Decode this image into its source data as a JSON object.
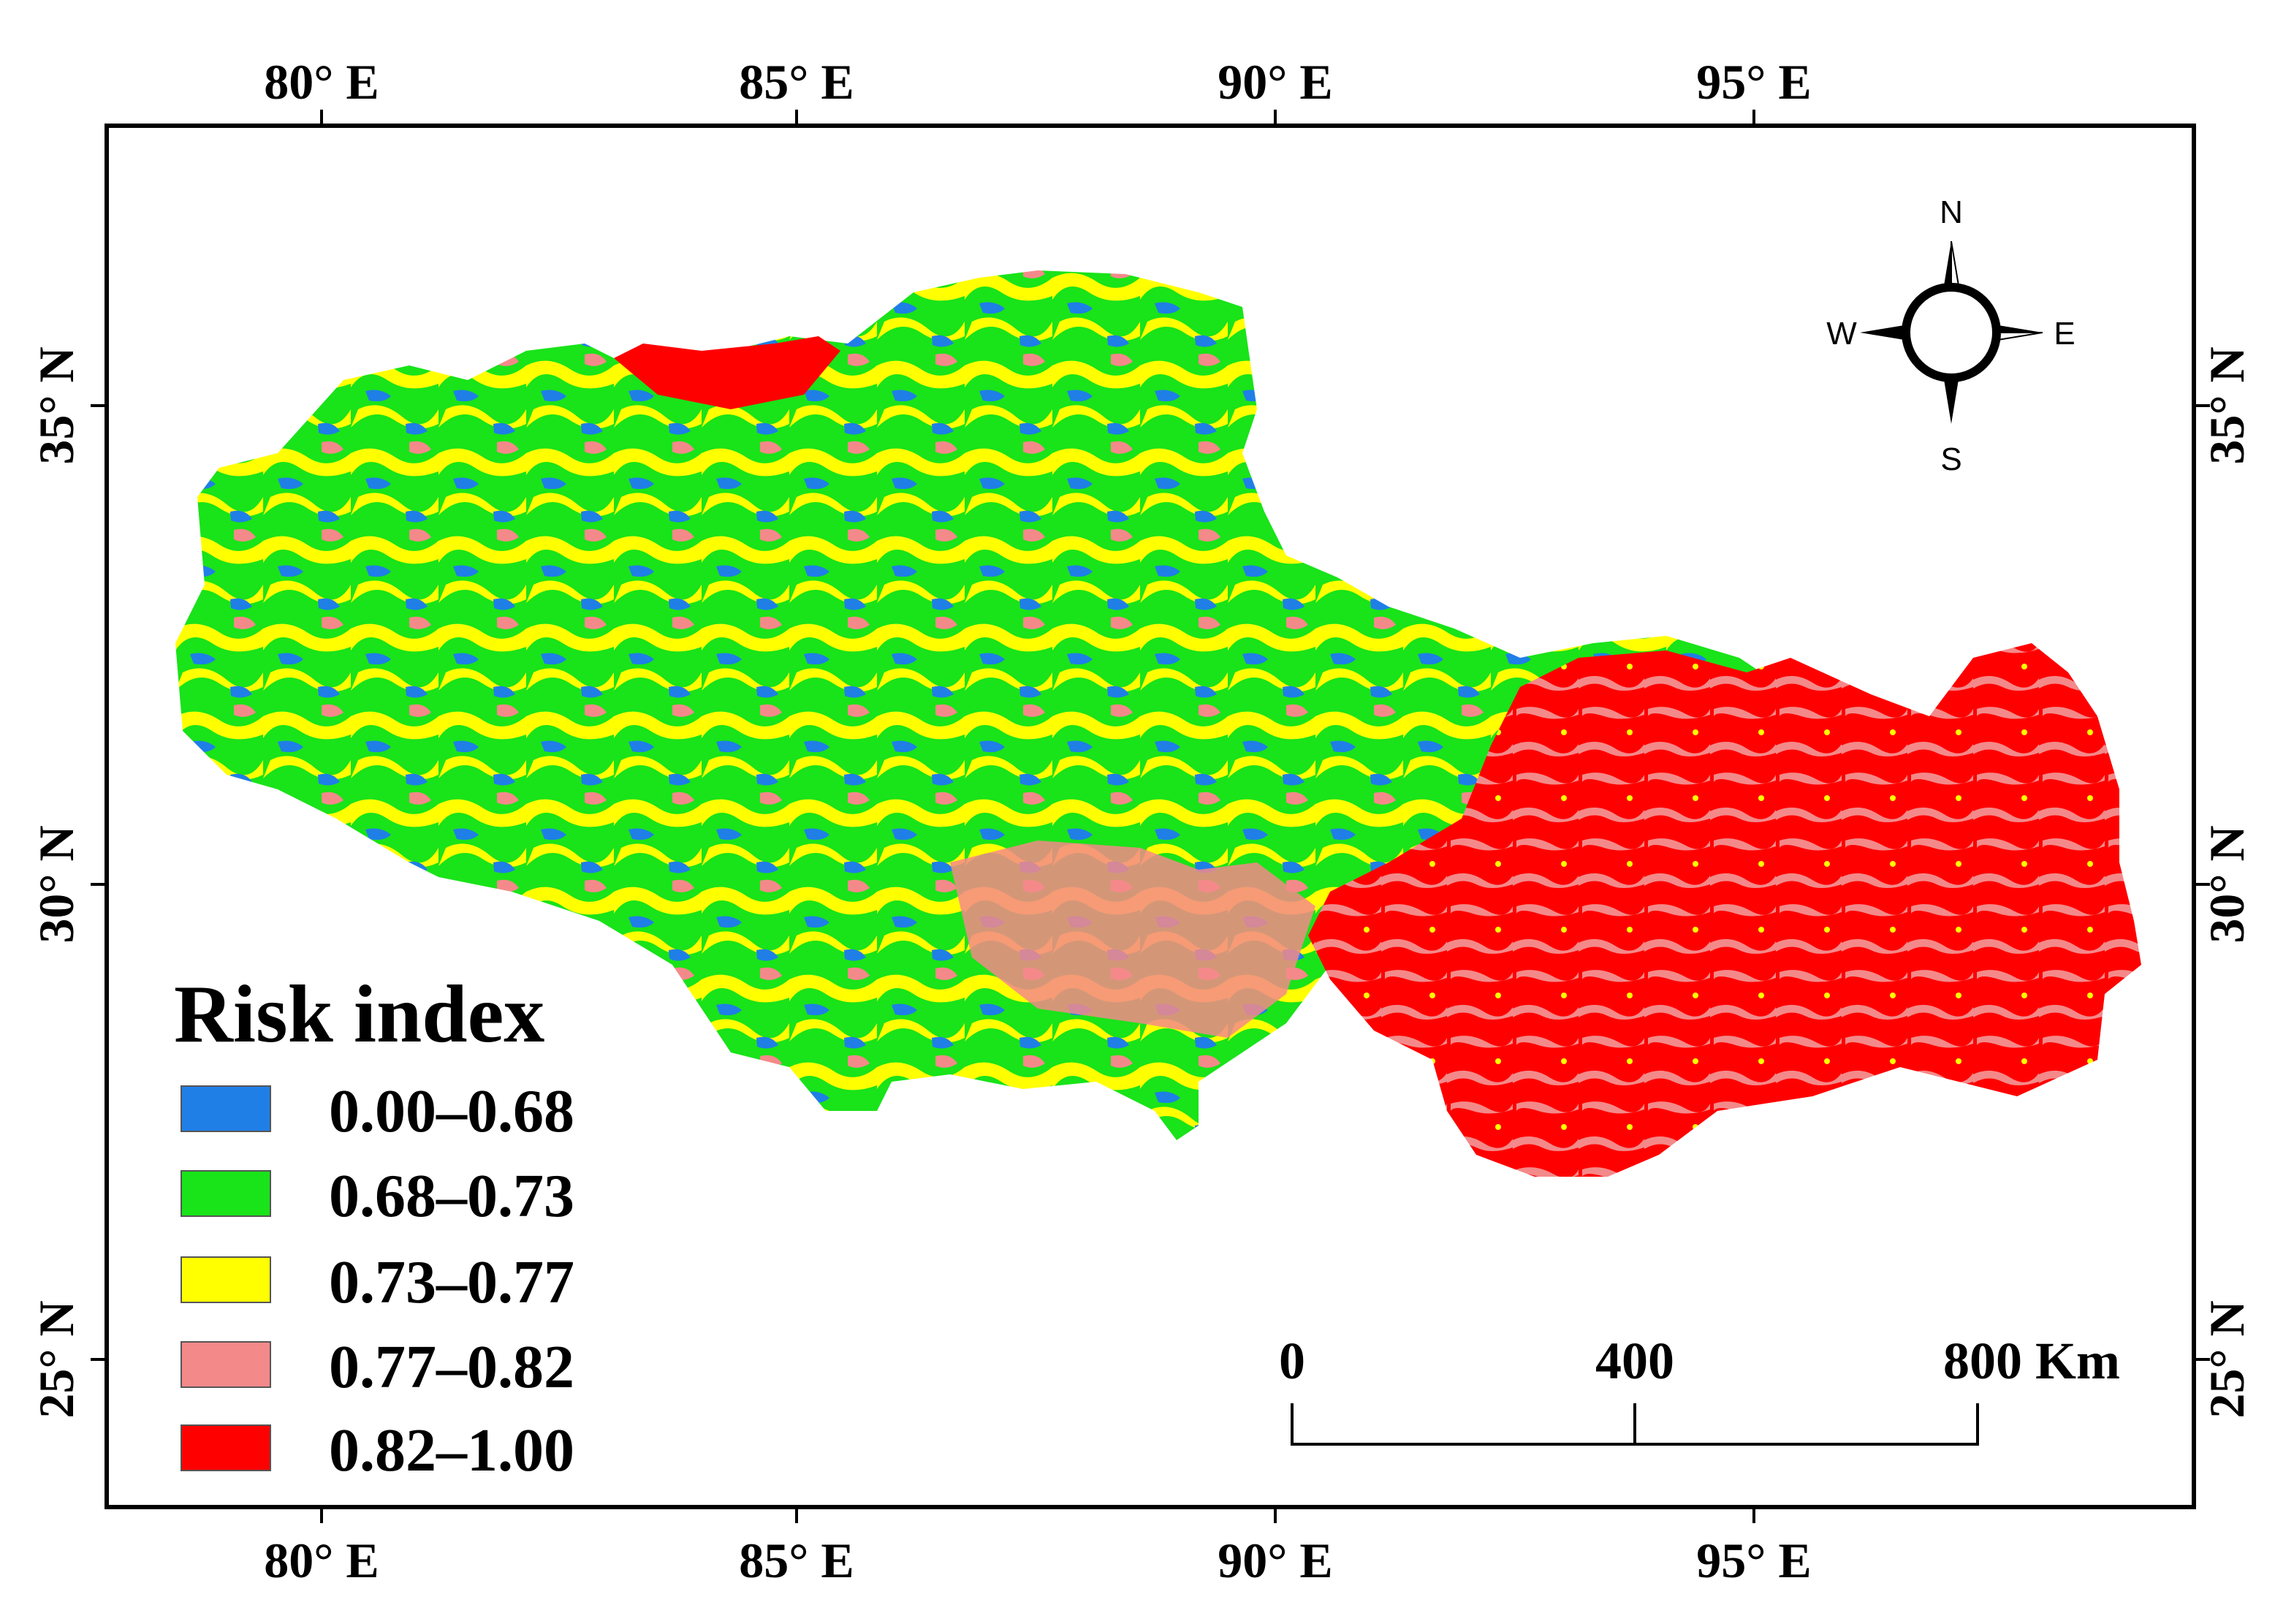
{
  "axes": {
    "lon_top": [
      "80° E",
      "85° E",
      "90° E",
      "95° E"
    ],
    "lon_bottom": [
      "80° E",
      "85° E",
      "90° E",
      "95° E"
    ],
    "lat_left": [
      "35° N",
      "30° N",
      "25° N"
    ],
    "lat_right": [
      "35° N",
      "30° N",
      "25° N"
    ]
  },
  "legend": {
    "title": "Risk index",
    "items": [
      {
        "label": "0.00–0.68",
        "color": "#1f7fe6"
      },
      {
        "label": "0.68–0.73",
        "color": "#19e319"
      },
      {
        "label": "0.73–0.77",
        "color": "#ffff00"
      },
      {
        "label": "0.77–0.82",
        "color": "#f4898a"
      },
      {
        "label": "0.82–1.00",
        "color": "#ff0000"
      }
    ]
  },
  "scale_bar": {
    "labels": [
      "0",
      "400",
      "800 Km"
    ]
  },
  "compass": {
    "n": "N",
    "s": "S",
    "e": "E",
    "w": "W"
  }
}
